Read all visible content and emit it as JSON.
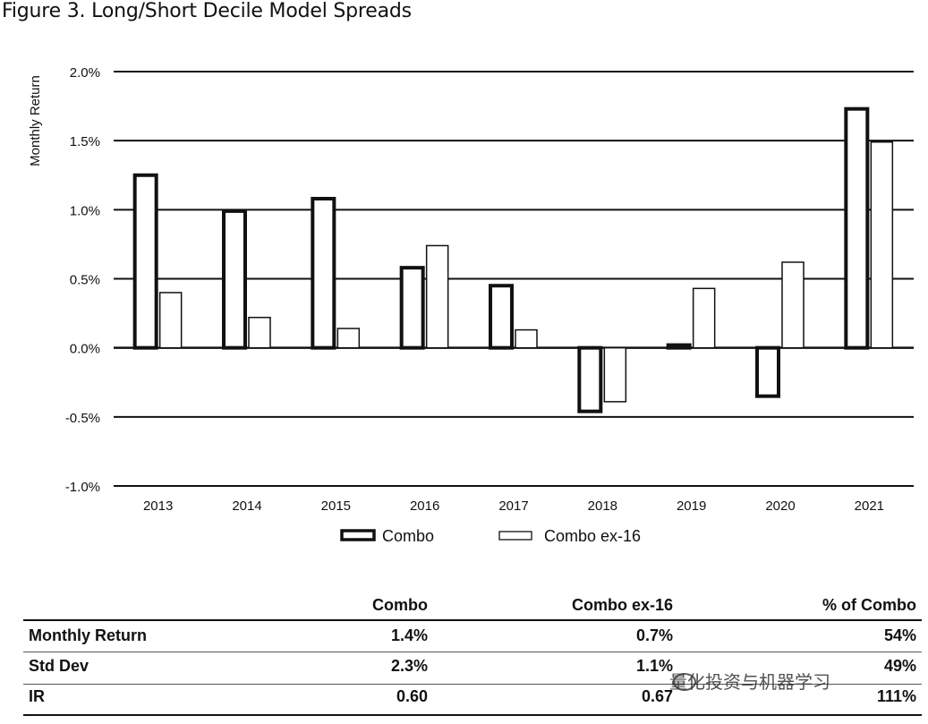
{
  "figure_title": "Figure 3. Long/Short Decile Model Spreads",
  "chart_data": {
    "type": "bar",
    "title": "Figure 3. Long/Short Decile Model Spreads",
    "xlabel": "",
    "ylabel": "Monthly Return",
    "categories": [
      "2013",
      "2014",
      "2015",
      "2016",
      "2017",
      "2018",
      "2019",
      "2020",
      "2021"
    ],
    "series": [
      {
        "name": "Combo",
        "values": [
          1.25,
          0.99,
          1.08,
          0.58,
          0.45,
          -0.46,
          0.02,
          -0.35,
          1.73
        ]
      },
      {
        "name": "Combo ex-16",
        "values": [
          0.4,
          0.22,
          0.14,
          0.74,
          0.13,
          -0.39,
          0.43,
          0.62,
          1.49
        ]
      }
    ],
    "ylim": [
      -1.0,
      2.0
    ],
    "yticks": [
      -1.0,
      -0.5,
      0.0,
      0.5,
      1.0,
      1.5,
      2.0
    ],
    "ytick_labels": [
      "-1.0%",
      "-0.5%",
      "0.0%",
      "0.5%",
      "1.0%",
      "1.5%",
      "2.0%"
    ],
    "grid": true,
    "legend_position": "bottom"
  },
  "table": {
    "columns": [
      "",
      "Combo",
      "Combo ex-16",
      "% of Combo"
    ],
    "rows": [
      {
        "label": "Monthly Return",
        "combo": "1.4%",
        "ex16": "0.7%",
        "pct": "54%"
      },
      {
        "label": "Std Dev",
        "combo": "2.3%",
        "ex16": "1.1%",
        "pct": "49%"
      },
      {
        "label": "IR",
        "combo": "0.60",
        "ex16": "0.67",
        "pct": "111%"
      }
    ]
  },
  "watermark": "量化投资与机器学习",
  "colors": {
    "combo_outline": "#111111",
    "ex16_outline": "#111111",
    "grid": "#111111",
    "background": "#ffffff"
  }
}
